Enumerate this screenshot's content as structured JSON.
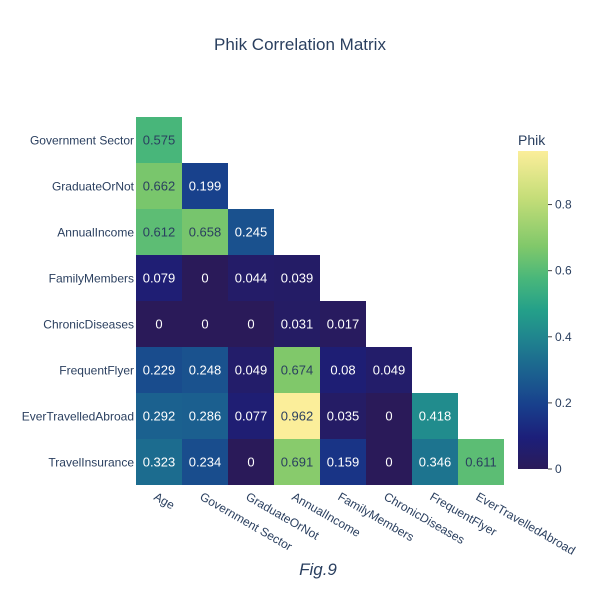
{
  "chart_data": {
    "type": "heatmap",
    "title": "Phik Correlation Matrix",
    "caption": "Fig.9",
    "x_categories": [
      "Age",
      "Government Sector",
      "GraduateOrNot",
      "AnnualIncome",
      "FamilyMembers",
      "ChronicDiseases",
      "FrequentFlyer",
      "EverTravelledAbroad"
    ],
    "y_categories": [
      "Government Sector",
      "GraduateOrNot",
      "AnnualIncome",
      "FamilyMembers",
      "ChronicDiseases",
      "FrequentFlyer",
      "EverTravelledAbroad",
      "TravelInsurance"
    ],
    "values": [
      [
        0.575,
        null,
        null,
        null,
        null,
        null,
        null,
        null
      ],
      [
        0.662,
        0.199,
        null,
        null,
        null,
        null,
        null,
        null
      ],
      [
        0.612,
        0.658,
        0.245,
        null,
        null,
        null,
        null,
        null
      ],
      [
        0.079,
        0,
        0.044,
        0.039,
        null,
        null,
        null,
        null
      ],
      [
        0,
        0,
        0,
        0.031,
        0.017,
        null,
        null,
        null
      ],
      [
        0.229,
        0.248,
        0.049,
        0.674,
        0.08,
        0.049,
        null,
        null
      ],
      [
        0.292,
        0.286,
        0.077,
        0.962,
        0.035,
        0,
        0.418,
        null
      ],
      [
        0.323,
        0.234,
        0,
        0.691,
        0.159,
        0,
        0.346,
        0.611
      ]
    ],
    "colorscale": "Viridis-like",
    "colorbar": {
      "title": "Phik",
      "range": [
        0,
        0.962
      ],
      "ticks": [
        0,
        0.2,
        0.4,
        0.6,
        0.8
      ],
      "tick_labels": [
        "0",
        "0.2",
        "0.4",
        "0.6",
        "0.8"
      ]
    }
  }
}
